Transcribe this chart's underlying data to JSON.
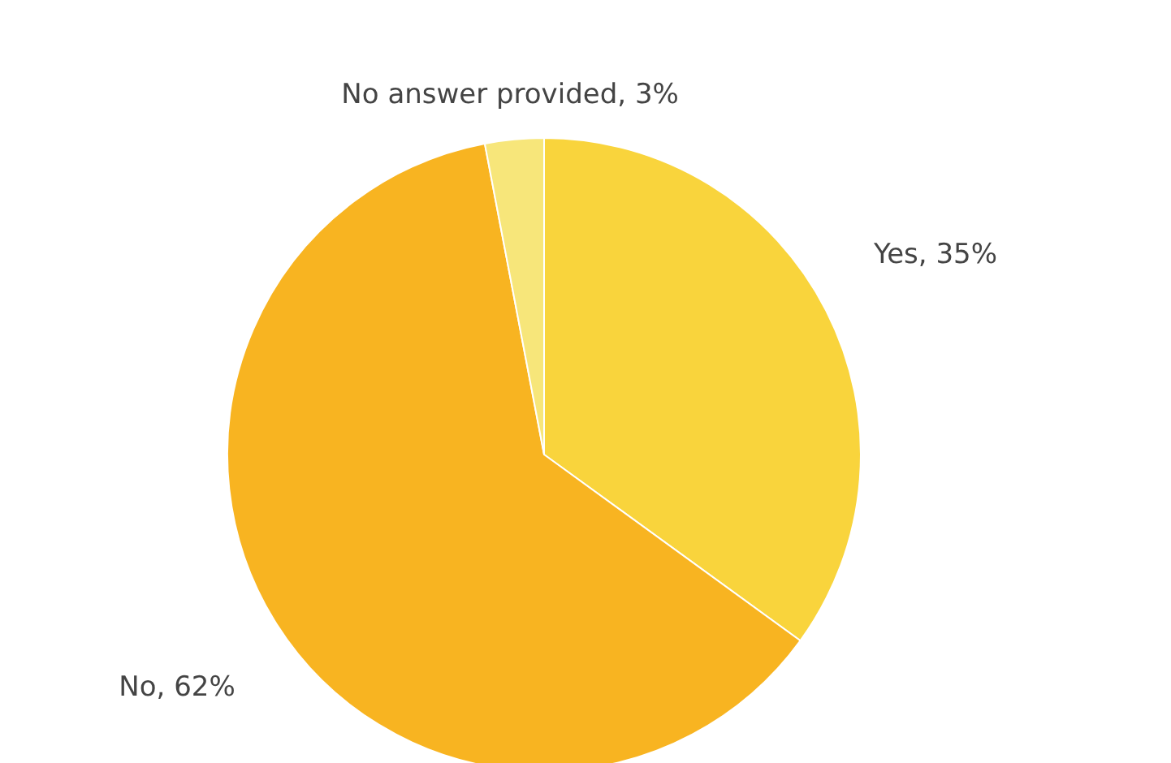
{
  "chart_data": {
    "type": "pie",
    "categories": [
      "Yes",
      "No",
      "No answer provided"
    ],
    "values": [
      35,
      62,
      3
    ],
    "value_labels": [
      "35%",
      "62%",
      "3%"
    ],
    "colors": [
      "#f9d43c",
      "#f8b421",
      "#f7e67a"
    ]
  }
}
